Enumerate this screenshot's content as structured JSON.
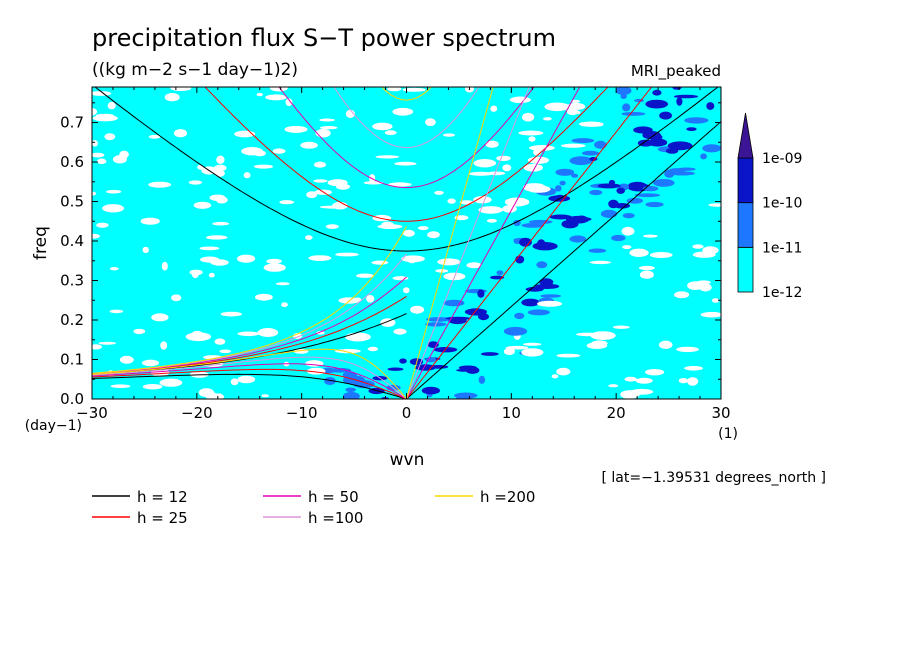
{
  "chart_data": {
    "type": "heatmap",
    "title": "precipitation flux S−T power spectrum",
    "subtitle": "((kg m−2 s−1 day−1)2)",
    "model_label": "MRI_peaked",
    "xlabel": "wvn",
    "ylabel": "freq",
    "x_unit": "(1)",
    "y_unit": "(day−1)",
    "footer_note": "[ lat=−1.39531 degrees_north ]",
    "xlim": [
      -30,
      30
    ],
    "ylim": [
      0,
      0.79
    ],
    "x_ticks": [
      -30,
      -20,
      -10,
      0,
      10,
      20,
      30
    ],
    "x_tick_labels": [
      "−30",
      "−20",
      "−10",
      "0",
      "10",
      "20",
      "30"
    ],
    "y_ticks": [
      0,
      0.1,
      0.2,
      0.3,
      0.4,
      0.5,
      0.6,
      0.7
    ],
    "y_tick_labels": [
      "0.0",
      "0.1",
      "0.2",
      "0.3",
      "0.4",
      "0.5",
      "0.6",
      "0.7"
    ],
    "colorbar": {
      "levels": [
        "1e-12",
        "1e-11",
        "1e-10",
        "1e-09"
      ],
      "colors": [
        "#00ffff",
        "#1e78ff",
        "#0a14c8",
        "#3c1496"
      ],
      "extend": "max"
    },
    "series": [
      {
        "name": "h = 12",
        "h": 12,
        "color": "#000000"
      },
      {
        "name": "h = 25",
        "h": 25,
        "color": "#ff0000"
      },
      {
        "name": "h = 50",
        "h": 50,
        "color": "#e600b4"
      },
      {
        "name": "h =100",
        "h": 100,
        "color": "#dc96dc"
      },
      {
        "name": "h =200",
        "h": 200,
        "color": "#ffd700"
      }
    ],
    "curves": [
      "kelvin",
      "inertio-gravity n=1",
      "rossby n=1",
      "mixed rossby-gravity"
    ],
    "background_fill": "#00ffff",
    "grid": false,
    "legend_position": "bottom-left"
  }
}
